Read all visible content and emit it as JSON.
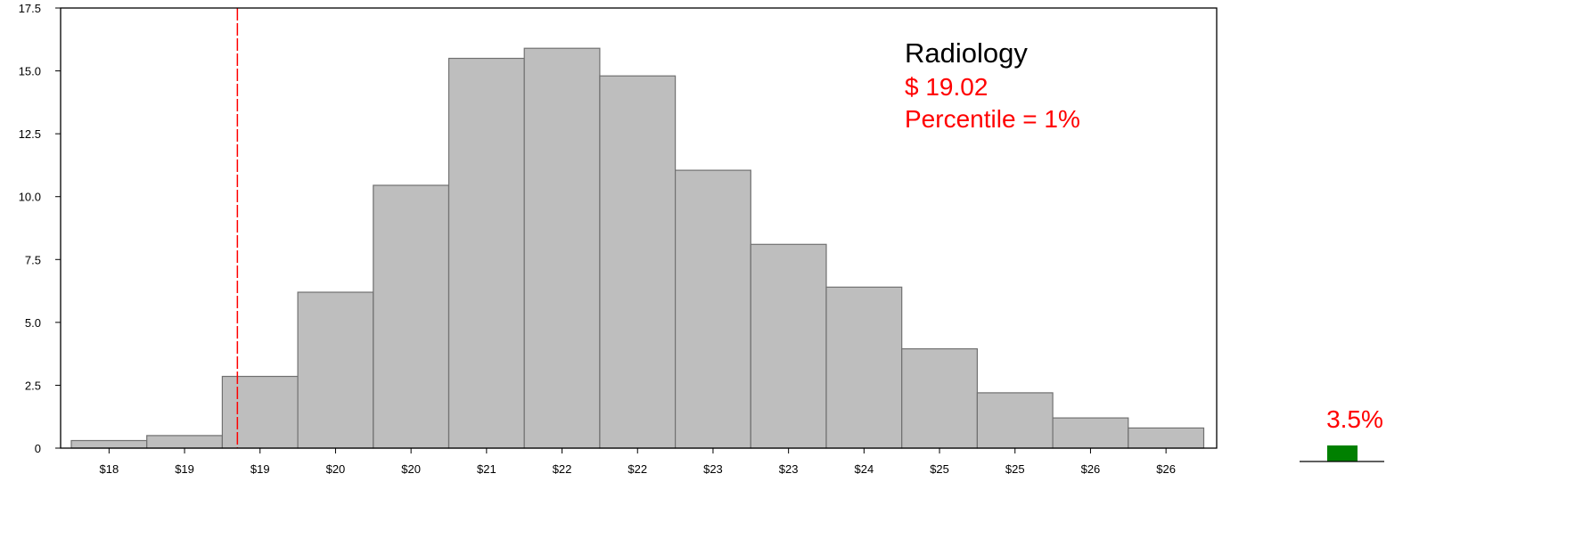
{
  "chart_data": {
    "type": "bar",
    "categories": [
      "$18",
      "$19",
      "$19",
      "$20",
      "$20",
      "$21",
      "$22",
      "$22",
      "$23",
      "$23",
      "$24",
      "$25",
      "$25",
      "$26",
      "$26"
    ],
    "values": [
      0.3,
      0.5,
      2.85,
      6.2,
      10.45,
      15.5,
      15.9,
      14.8,
      11.05,
      8.1,
      6.4,
      3.95,
      2.2,
      1.2,
      0.8
    ],
    "yticks": [
      "0",
      "2.5",
      "5.0",
      "7.5",
      "10.0",
      "12.5",
      "15.0",
      "17.5"
    ],
    "ytick_values": [
      0,
      2.5,
      5.0,
      7.5,
      10.0,
      12.5,
      15.0,
      17.5
    ],
    "ylim": [
      0,
      17.5
    ],
    "xlabel": "",
    "ylabel": "",
    "title": "",
    "grid": false,
    "bar_color": "#bebebe",
    "bar_edge_color": "#707070",
    "reference_line": {
      "value_position_in_bins": 2.2,
      "color": "#ff0000",
      "style": "dashed"
    },
    "annotation": {
      "title": "Radiology",
      "value": "$ 19.02",
      "percentile": "Percentile = 1%",
      "value_color": "#ff0000"
    }
  },
  "side_indicator": {
    "label": "3.5%",
    "value_percent": 3.5,
    "label_color": "#ff0000",
    "bar_color": "#008000"
  }
}
